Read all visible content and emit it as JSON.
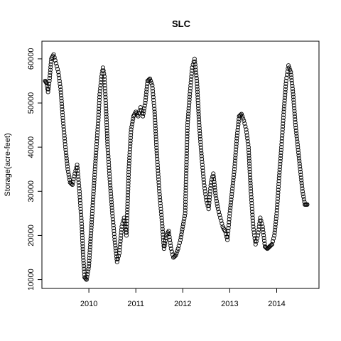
{
  "chart_data": {
    "type": "scatter",
    "title": "SLC",
    "xlabel": "",
    "ylabel": "Storage(acre-feet)",
    "xlim": [
      2009.0,
      2014.9
    ],
    "ylim": [
      8000,
      64000
    ],
    "x_ticks": [
      2010,
      2011,
      2012,
      2013,
      2014
    ],
    "x_tick_labels": [
      "2010",
      "2011",
      "2012",
      "2013",
      "2014"
    ],
    "y_ticks": [
      10000,
      20000,
      30000,
      40000,
      50000,
      60000
    ],
    "y_tick_labels": [
      "10000",
      "20000",
      "30000",
      "40000",
      "50000",
      "60000"
    ],
    "grid": false,
    "marker": "open-circle",
    "series": [
      {
        "x": [
          2009.07,
          2009.1,
          2009.13,
          2009.16,
          2009.2,
          2009.25,
          2009.3,
          2009.35,
          2009.4,
          2009.45,
          2009.5,
          2009.55,
          2009.6,
          2009.65,
          2009.7,
          2009.75,
          2009.8,
          2009.85,
          2009.88,
          2009.91,
          2009.95,
          2010.0,
          2010.03,
          2010.06,
          2010.1,
          2010.13,
          2010.16,
          2010.2,
          2010.23,
          2010.27,
          2010.3,
          2010.33,
          2010.36,
          2010.4,
          2010.45,
          2010.5,
          2010.55,
          2010.6,
          2010.65,
          2010.7,
          2010.75,
          2010.8,
          2010.85,
          2010.9,
          2010.95,
          2011.0,
          2011.05,
          2011.1,
          2011.15,
          2011.2,
          2011.25,
          2011.3,
          2011.35,
          2011.4,
          2011.45,
          2011.5,
          2011.55,
          2011.6,
          2011.65,
          2011.7,
          2011.75,
          2011.8,
          2011.85,
          2011.9,
          2011.95,
          2012.0,
          2012.05,
          2012.1,
          2012.15,
          2012.2,
          2012.25,
          2012.3,
          2012.35,
          2012.4,
          2012.45,
          2012.5,
          2012.55,
          2012.6,
          2012.65,
          2012.7,
          2012.75,
          2012.8,
          2012.85,
          2012.9,
          2012.95,
          2013.0,
          2013.05,
          2013.1,
          2013.15,
          2013.2,
          2013.25,
          2013.3,
          2013.35,
          2013.4,
          2013.45,
          2013.5,
          2013.55,
          2013.6,
          2013.65,
          2013.7,
          2013.75,
          2013.8,
          2013.85,
          2013.9,
          2013.95,
          2014.0,
          2014.05,
          2014.1,
          2014.15,
          2014.2,
          2014.25,
          2014.3,
          2014.35,
          2014.4,
          2014.45,
          2014.5,
          2014.55,
          2014.6,
          2014.65
        ],
        "y": [
          55000,
          54500,
          52500,
          55000,
          60000,
          61000,
          59000,
          57000,
          53000,
          46000,
          40000,
          35000,
          32000,
          31500,
          34000,
          36000,
          30000,
          22000,
          15000,
          10500,
          10000,
          13000,
          18000,
          23000,
          30000,
          35000,
          40000,
          46000,
          52000,
          56000,
          58000,
          56000,
          50000,
          40000,
          32000,
          25000,
          19000,
          14000,
          16000,
          22000,
          24000,
          20000,
          35000,
          44000,
          47000,
          48000,
          47000,
          49000,
          47000,
          50000,
          55000,
          55500,
          54000,
          48000,
          38000,
          30000,
          24000,
          17000,
          20000,
          21000,
          17000,
          15000,
          15500,
          17000,
          19000,
          22000,
          25000,
          45000,
          52000,
          58000,
          60000,
          55000,
          45000,
          38000,
          32000,
          28000,
          26000,
          32000,
          34000,
          29000,
          26000,
          24000,
          22000,
          21000,
          19000,
          25000,
          30000,
          35000,
          42000,
          47000,
          47500,
          46000,
          44000,
          40000,
          30000,
          22000,
          18000,
          20000,
          24000,
          22000,
          17500,
          17000,
          17500,
          18000,
          20000,
          25000,
          33000,
          40000,
          48000,
          55000,
          58500,
          57000,
          52000,
          45000,
          40000,
          35000,
          30000,
          27000,
          27000
        ]
      }
    ]
  }
}
